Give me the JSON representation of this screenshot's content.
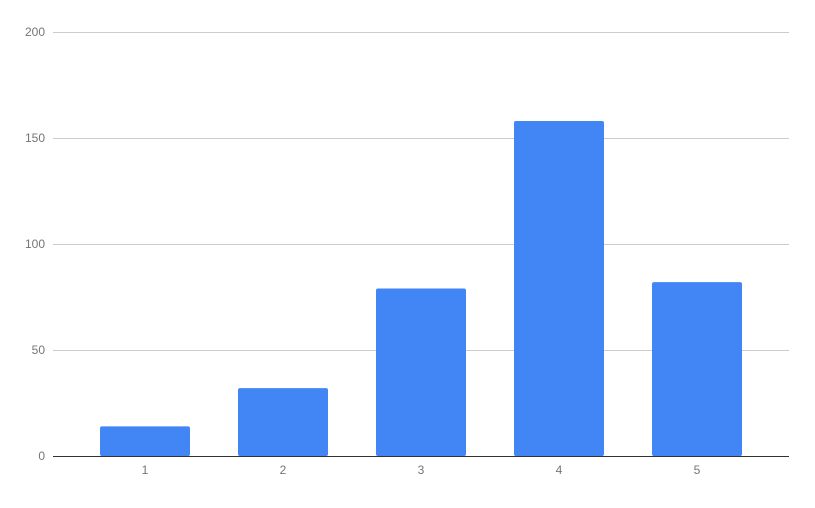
{
  "chart_data": {
    "type": "bar",
    "title": "",
    "xlabel": "",
    "ylabel": "",
    "categories": [
      "1",
      "2",
      "3",
      "4",
      "5"
    ],
    "values": [
      14,
      32,
      79,
      158,
      82
    ],
    "ylim": [
      0,
      200
    ],
    "yticks": [
      0,
      50,
      100,
      150,
      200
    ],
    "ytick_labels": [
      "0",
      "50",
      "100",
      "150",
      "200"
    ],
    "grid": true,
    "legend": "none",
    "bar_color": "#4285f4",
    "grid_color": "#cccccc",
    "axis_color": "#333333"
  }
}
